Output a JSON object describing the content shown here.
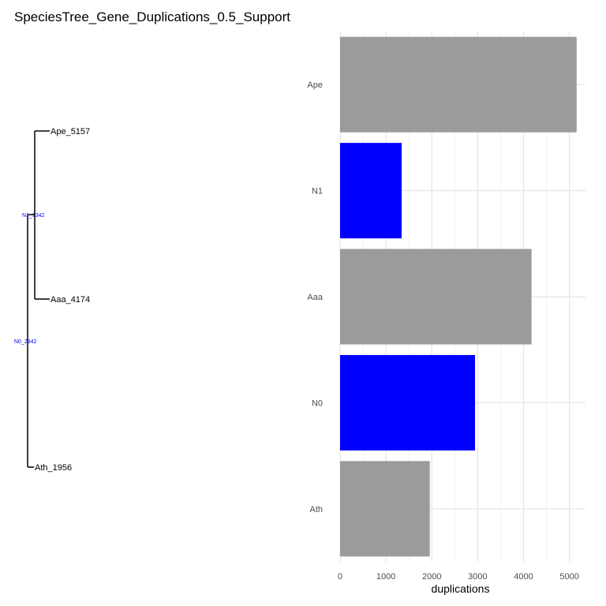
{
  "title": "SpeciesTree_Gene_Duplications_0.5_Support",
  "tree": {
    "tips": [
      {
        "label": "Ape_5157"
      },
      {
        "label": "Aaa_4174"
      },
      {
        "label": "Ath_1956"
      }
    ],
    "internal_nodes": [
      {
        "label": "N1_1342",
        "color": "#0000ff"
      },
      {
        "label": "N0_2942",
        "color": "#0000ff"
      }
    ],
    "branch_color": "#000000"
  },
  "chart_data": {
    "type": "bar",
    "orientation": "horizontal",
    "categories": [
      "Ape",
      "N1",
      "Aaa",
      "N0",
      "Ath"
    ],
    "values": [
      5157,
      1342,
      4174,
      2942,
      1956
    ],
    "colors": [
      "#9b9b9b",
      "#0000ff",
      "#9b9b9b",
      "#0000ff",
      "#9b9b9b"
    ],
    "xlabel": "duplications",
    "xticks": [
      0,
      1000,
      2000,
      3000,
      4000,
      5000
    ],
    "xlim": [
      0,
      5350
    ],
    "grid": true
  }
}
